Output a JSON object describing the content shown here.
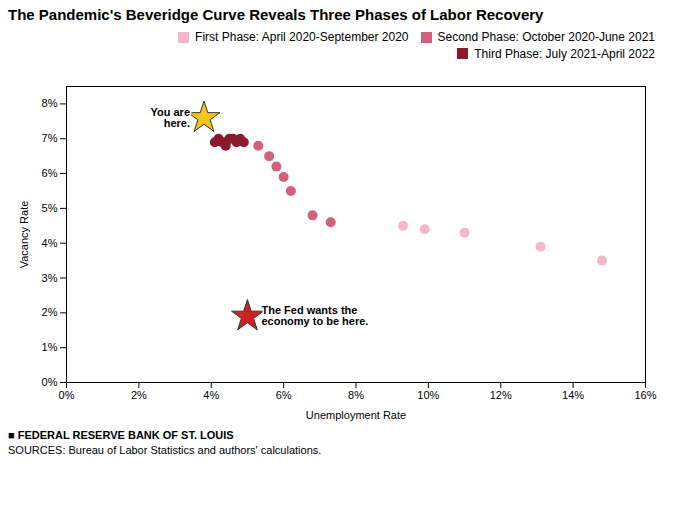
{
  "chart_data": {
    "type": "scatter",
    "title": "The Pandemic's Beveridge Curve Reveals Three Phases of Labor Recovery",
    "xlabel": "Unemployment Rate",
    "ylabel": "Vacancy Rate",
    "xlim": [
      0,
      0.16
    ],
    "ylim": [
      0,
      0.085
    ],
    "xticks": [
      {
        "value": 0.0,
        "label": "0%"
      },
      {
        "value": 0.02,
        "label": "2%"
      },
      {
        "value": 0.04,
        "label": "4%"
      },
      {
        "value": 0.06,
        "label": "6%"
      },
      {
        "value": 0.08,
        "label": "8%"
      },
      {
        "value": 0.1,
        "label": "10%"
      },
      {
        "value": 0.12,
        "label": "12%"
      },
      {
        "value": 0.14,
        "label": "14%"
      },
      {
        "value": 0.16,
        "label": "16%"
      }
    ],
    "yticks": [
      {
        "value": 0.0,
        "label": "0%"
      },
      {
        "value": 0.01,
        "label": "1%"
      },
      {
        "value": 0.02,
        "label": "2%"
      },
      {
        "value": 0.03,
        "label": "3%"
      },
      {
        "value": 0.04,
        "label": "4%"
      },
      {
        "value": 0.05,
        "label": "5%"
      },
      {
        "value": 0.06,
        "label": "6%"
      },
      {
        "value": 0.07,
        "label": "7%"
      },
      {
        "value": 0.08,
        "label": "8%"
      }
    ],
    "grid": false,
    "legend": "top-right",
    "series": [
      {
        "name": "First Phase: April 2020-September 2020",
        "color": "#f5b8c8",
        "marker": "circle",
        "x": [
          0.148,
          0.131,
          0.11,
          0.099,
          0.093
        ],
        "values": [
          0.035,
          0.039,
          0.043,
          0.044,
          0.045
        ]
      },
      {
        "name": "Second Phase: October 2020-June 2021",
        "color": "#d4607a",
        "marker": "circle",
        "x": [
          0.073,
          0.068,
          0.062,
          0.06,
          0.058,
          0.056,
          0.053
        ],
        "values": [
          0.046,
          0.048,
          0.055,
          0.059,
          0.062,
          0.065,
          0.068
        ]
      },
      {
        "name": "Third Phase: July 2021-April 2022",
        "color": "#8b1a2a",
        "marker": "circle",
        "x": [
          0.049,
          0.048,
          0.047,
          0.046,
          0.045,
          0.044,
          0.044,
          0.043,
          0.042,
          0.041
        ],
        "values": [
          0.069,
          0.07,
          0.069,
          0.07,
          0.07,
          0.069,
          0.068,
          0.069,
          0.07,
          0.069
        ]
      }
    ],
    "annotations": [
      {
        "text": "You are\nhere.",
        "x": 0.038,
        "y": 0.076,
        "color": "#f5c518",
        "marker": "star"
      },
      {
        "text": "The Fed wants the\neconomy to be here.",
        "x": 0.05,
        "y": 0.019,
        "color": "#cc2222",
        "marker": "star"
      }
    ],
    "caption": "■ FEDERAL RESERVE BANK OF ST. LOUIS",
    "source": "SOURCES: Bureau of Labor Statistics and authors' calculations."
  }
}
